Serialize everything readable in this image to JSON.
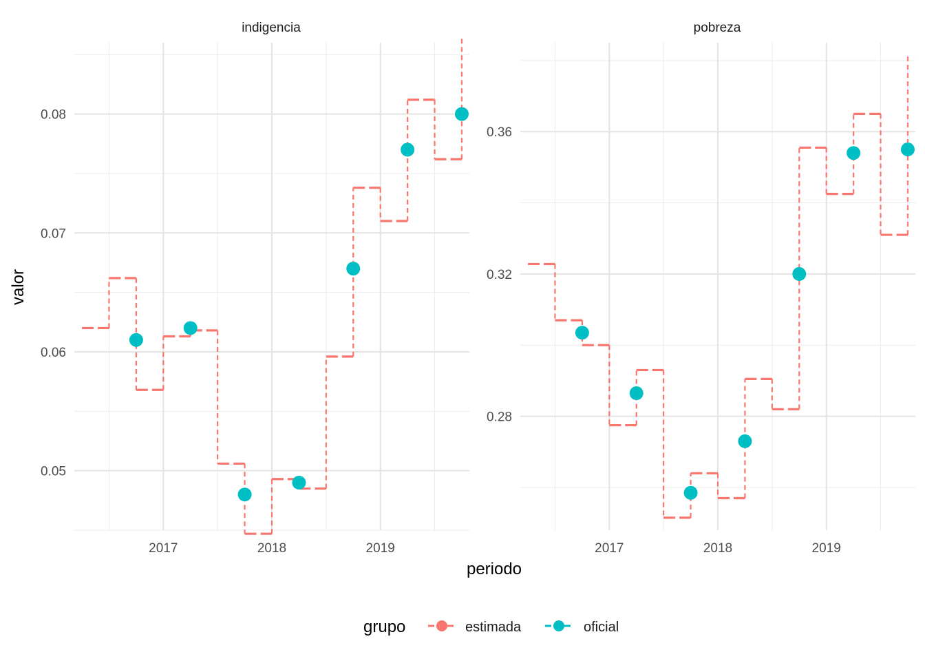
{
  "chart_data": {
    "type": "line",
    "xlabel": "periodo",
    "ylabel": "valor",
    "legend": {
      "title": "grupo",
      "position": "bottom",
      "entries": [
        {
          "name": "estimada",
          "color": "#F8766D"
        },
        {
          "name": "oficial",
          "color": "#00BFC4"
        }
      ]
    },
    "grid": true,
    "x_ticks": [
      "2017",
      "2018",
      "2019"
    ],
    "panels": [
      {
        "title": "indigencia",
        "ylim": [
          0.045,
          0.086
        ],
        "y_ticks": [
          0.05,
          0.06,
          0.07,
          0.08
        ],
        "y_tick_labels": [
          "0.05",
          "0.06",
          "0.07",
          "0.08"
        ],
        "estimada_steps": [
          {
            "from": 2016.25,
            "to": 2016.5,
            "value": 0.062
          },
          {
            "from": 2016.5,
            "to": 2016.75,
            "value": 0.0662
          },
          {
            "from": 2016.75,
            "to": 2017.0,
            "value": 0.0568
          },
          {
            "from": 2017.0,
            "to": 2017.25,
            "value": 0.0613
          },
          {
            "from": 2017.25,
            "to": 2017.5,
            "value": 0.0618
          },
          {
            "from": 2017.5,
            "to": 2017.75,
            "value": 0.0506
          },
          {
            "from": 2017.75,
            "to": 2018.0,
            "value": 0.0447
          },
          {
            "from": 2018.0,
            "to": 2018.25,
            "value": 0.0493
          },
          {
            "from": 2018.25,
            "to": 2018.5,
            "value": 0.0485
          },
          {
            "from": 2018.5,
            "to": 2018.75,
            "value": 0.0596
          },
          {
            "from": 2018.75,
            "to": 2019.0,
            "value": 0.0738
          },
          {
            "from": 2019.0,
            "to": 2019.25,
            "value": 0.071
          },
          {
            "from": 2019.25,
            "to": 2019.5,
            "value": 0.0812
          },
          {
            "from": 2019.5,
            "to": 2019.75,
            "value": 0.0762
          }
        ],
        "estimada_end": {
          "x": 2019.75,
          "value": 0.0866
        },
        "oficial": [
          {
            "x": 2016.75,
            "value": 0.061
          },
          {
            "x": 2017.25,
            "value": 0.062
          },
          {
            "x": 2017.75,
            "value": 0.048
          },
          {
            "x": 2018.25,
            "value": 0.049
          },
          {
            "x": 2018.75,
            "value": 0.067
          },
          {
            "x": 2019.25,
            "value": 0.077
          },
          {
            "x": 2019.75,
            "value": 0.08
          }
        ]
      },
      {
        "title": "pobreza",
        "ylim": [
          0.248,
          0.385
        ],
        "y_ticks": [
          0.28,
          0.32,
          0.36
        ],
        "y_tick_labels": [
          "0.28",
          "0.32",
          "0.36"
        ],
        "estimada_steps": [
          {
            "from": 2016.25,
            "to": 2016.5,
            "value": 0.3228
          },
          {
            "from": 2016.5,
            "to": 2016.75,
            "value": 0.307
          },
          {
            "from": 2016.75,
            "to": 2017.0,
            "value": 0.3
          },
          {
            "from": 2017.0,
            "to": 2017.25,
            "value": 0.2775
          },
          {
            "from": 2017.25,
            "to": 2017.5,
            "value": 0.293
          },
          {
            "from": 2017.5,
            "to": 2017.75,
            "value": 0.2515
          },
          {
            "from": 2017.75,
            "to": 2018.0,
            "value": 0.264
          },
          {
            "from": 2018.0,
            "to": 2018.25,
            "value": 0.257
          },
          {
            "from": 2018.25,
            "to": 2018.5,
            "value": 0.2905
          },
          {
            "from": 2018.5,
            "to": 2018.75,
            "value": 0.282
          },
          {
            "from": 2018.75,
            "to": 2019.0,
            "value": 0.3555
          },
          {
            "from": 2019.0,
            "to": 2019.25,
            "value": 0.3425
          },
          {
            "from": 2019.25,
            "to": 2019.5,
            "value": 0.365
          },
          {
            "from": 2019.5,
            "to": 2019.75,
            "value": 0.331
          }
        ],
        "estimada_end": {
          "x": 2019.75,
          "value": 0.382
        },
        "oficial": [
          {
            "x": 2016.75,
            "value": 0.3035
          },
          {
            "x": 2017.25,
            "value": 0.2865
          },
          {
            "x": 2017.75,
            "value": 0.2585
          },
          {
            "x": 2018.25,
            "value": 0.273
          },
          {
            "x": 2018.75,
            "value": 0.32
          },
          {
            "x": 2019.25,
            "value": 0.354
          },
          {
            "x": 2019.75,
            "value": 0.355
          }
        ]
      }
    ]
  }
}
